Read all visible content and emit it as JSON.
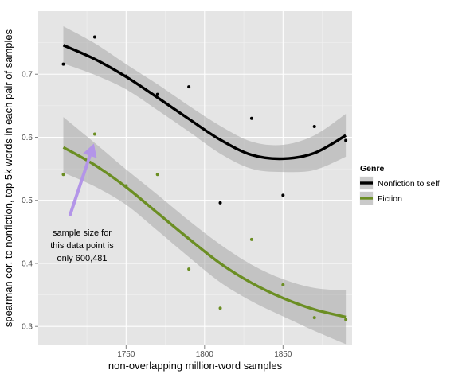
{
  "chart_data": {
    "type": "scatter",
    "xlabel": "non-overlapping million-word samples",
    "ylabel": "spearman cor. to nonfiction, top 5k words in each pair of samples",
    "xlim": [
      1694,
      1894
    ],
    "ylim": [
      0.27,
      0.8
    ],
    "x_ticks": [
      1750,
      1800,
      1850
    ],
    "y_ticks": [
      0.3,
      0.4,
      0.5,
      0.6,
      0.7
    ],
    "grid": true,
    "legend": {
      "title": "Genre",
      "placement": "right",
      "entries": [
        "Nonfiction to self",
        "Fiction"
      ]
    },
    "series": [
      {
        "name": "Nonfiction to self",
        "color": "#000000",
        "points": [
          {
            "x": 1710,
            "y": 0.716
          },
          {
            "x": 1730,
            "y": 0.759
          },
          {
            "x": 1750,
            "y": 0.697
          },
          {
            "x": 1770,
            "y": 0.668
          },
          {
            "x": 1790,
            "y": 0.68
          },
          {
            "x": 1810,
            "y": 0.496
          },
          {
            "x": 1830,
            "y": 0.63
          },
          {
            "x": 1850,
            "y": 0.508
          },
          {
            "x": 1870,
            "y": 0.617
          },
          {
            "x": 1890,
            "y": 0.595
          }
        ],
        "smooth": [
          {
            "x": 1710,
            "y": 0.746,
            "lo": 0.717,
            "hi": 0.776
          },
          {
            "x": 1730,
            "y": 0.724,
            "lo": 0.699,
            "hi": 0.749
          },
          {
            "x": 1750,
            "y": 0.696,
            "lo": 0.676,
            "hi": 0.716
          },
          {
            "x": 1770,
            "y": 0.663,
            "lo": 0.643,
            "hi": 0.684
          },
          {
            "x": 1790,
            "y": 0.629,
            "lo": 0.609,
            "hi": 0.65
          },
          {
            "x": 1810,
            "y": 0.596,
            "lo": 0.574,
            "hi": 0.618
          },
          {
            "x": 1830,
            "y": 0.572,
            "lo": 0.55,
            "hi": 0.593
          },
          {
            "x": 1850,
            "y": 0.566,
            "lo": 0.545,
            "hi": 0.588
          },
          {
            "x": 1870,
            "y": 0.575,
            "lo": 0.548,
            "hi": 0.603
          },
          {
            "x": 1890,
            "y": 0.603,
            "lo": 0.569,
            "hi": 0.637
          }
        ]
      },
      {
        "name": "Fiction",
        "color": "#6b8e23",
        "points": [
          {
            "x": 1710,
            "y": 0.541
          },
          {
            "x": 1730,
            "y": 0.605
          },
          {
            "x": 1750,
            "y": 0.523
          },
          {
            "x": 1770,
            "y": 0.541
          },
          {
            "x": 1790,
            "y": 0.391
          },
          {
            "x": 1810,
            "y": 0.329
          },
          {
            "x": 1830,
            "y": 0.438
          },
          {
            "x": 1850,
            "y": 0.366
          },
          {
            "x": 1870,
            "y": 0.314
          },
          {
            "x": 1890,
            "y": 0.311
          }
        ],
        "smooth": [
          {
            "x": 1710,
            "y": 0.584,
            "lo": 0.544,
            "hi": 0.632
          },
          {
            "x": 1730,
            "y": 0.556,
            "lo": 0.522,
            "hi": 0.591
          },
          {
            "x": 1750,
            "y": 0.521,
            "lo": 0.493,
            "hi": 0.549
          },
          {
            "x": 1770,
            "y": 0.48,
            "lo": 0.452,
            "hi": 0.509
          },
          {
            "x": 1790,
            "y": 0.439,
            "lo": 0.41,
            "hi": 0.468
          },
          {
            "x": 1810,
            "y": 0.4,
            "lo": 0.37,
            "hi": 0.43
          },
          {
            "x": 1830,
            "y": 0.369,
            "lo": 0.34,
            "hi": 0.398
          },
          {
            "x": 1850,
            "y": 0.345,
            "lo": 0.316,
            "hi": 0.375
          },
          {
            "x": 1870,
            "y": 0.327,
            "lo": 0.293,
            "hi": 0.361
          },
          {
            "x": 1890,
            "y": 0.315,
            "lo": 0.272,
            "hi": 0.357
          }
        ]
      }
    ],
    "annotation": {
      "lines": [
        "sample size for",
        "this data point is",
        "only 600,481"
      ],
      "arrow_color": "#b395e8",
      "points_to": {
        "x": 1730,
        "y": 0.605
      }
    }
  },
  "colors": {
    "panel_background": "#e5e5e5",
    "grid_major": "#ffffff",
    "ribbon": "#999999"
  }
}
